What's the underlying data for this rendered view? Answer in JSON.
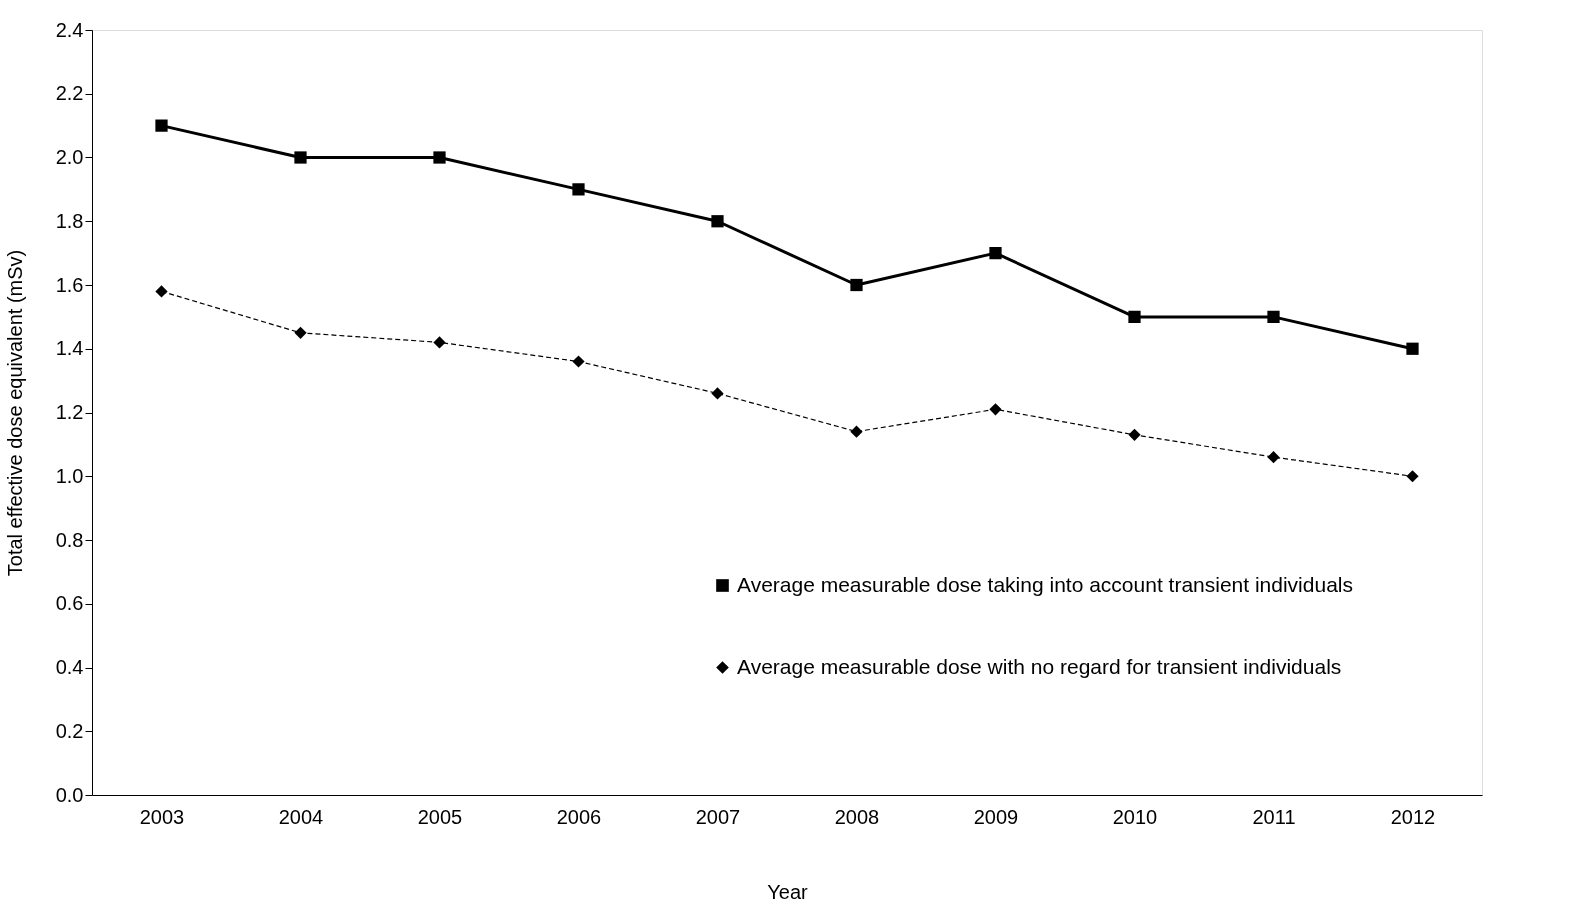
{
  "chart_data": {
    "type": "line",
    "xlabel": "Year",
    "ylabel": "Total effective dose equivalent  (mSv)",
    "categories": [
      "2003",
      "2004",
      "2005",
      "2006",
      "2007",
      "2008",
      "2009",
      "2010",
      "2011",
      "2012"
    ],
    "series": [
      {
        "name": "Average measurable dose taking into account transient individuals",
        "color": "#000000",
        "marker": "square",
        "line_style": "solid",
        "values": [
          2.1,
          2.0,
          2.0,
          1.9,
          1.8,
          1.6,
          1.7,
          1.5,
          1.5,
          1.4
        ]
      },
      {
        "name": "Average measurable dose with no regard  for transient individuals",
        "color": "#000000",
        "marker": "diamond",
        "line_style": "dashed",
        "values": [
          1.58,
          1.45,
          1.42,
          1.36,
          1.26,
          1.14,
          1.21,
          1.13,
          1.06,
          1.0
        ]
      }
    ],
    "ylim": [
      0,
      2.4
    ],
    "yticks": [
      {
        "value": 0,
        "label": "0.0"
      },
      0.2,
      0.4,
      0.6,
      0.8,
      {
        "value": 1,
        "label": "1.0"
      },
      1.2,
      1.4,
      1.6,
      1.8,
      {
        "value": 2,
        "label": "2.0"
      },
      2.2,
      2.4
    ],
    "grid": false,
    "legend": "bottom right"
  }
}
